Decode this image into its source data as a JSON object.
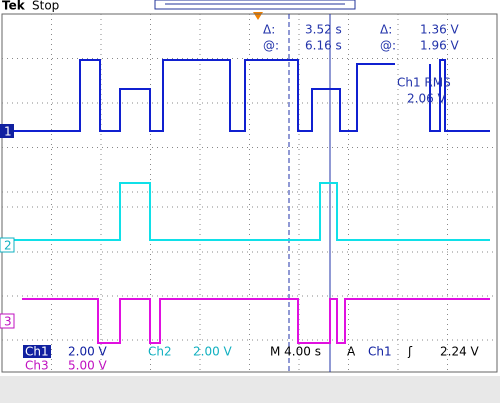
{
  "header": {
    "brand": "Tek",
    "status": "Stop"
  },
  "cursors": {
    "time_delta_label": "Δ:",
    "time_delta": "3.52 s",
    "time_at_label": "@:",
    "time_at": "6.16 s",
    "volt_delta_label": "Δ:",
    "volt_delta": "1.36 V",
    "volt_at_label": "@:",
    "volt_at": "1.96 V"
  },
  "measurement": {
    "label": "Ch1 RMS",
    "value": "2.06 V"
  },
  "channel_markers": [
    "1",
    "2",
    "3"
  ],
  "readout": {
    "ch1": "Ch1",
    "ch1_scale": "2.00 V",
    "ch2": "Ch2",
    "ch2_scale": "2.00 V",
    "timebase": "M 4.00 s",
    "trigger_mode": "A",
    "trigger_source": "Ch1",
    "trigger_slope": "ʃ",
    "trigger_level": "2.24 V",
    "ch3": "Ch3",
    "ch3_scale": "5.00 V"
  }
}
